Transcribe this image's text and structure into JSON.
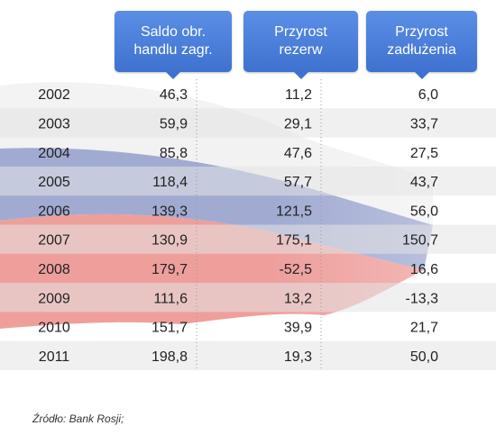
{
  "headers": [
    {
      "label": "Saldo obr.\nhandlu zagr."
    },
    {
      "label": "Przyrost\nrezerw"
    },
    {
      "label": "Przyrost\nzadłużenia"
    }
  ],
  "colors": {
    "header_top": "#5b8ee6",
    "header_bottom": "#3f72cf",
    "stripe": "#e4e4e4",
    "flag_white": "#f1f1f1",
    "flag_blue": "#5d6fb2",
    "flag_red": "#e0504a"
  },
  "chart_data": {
    "type": "table",
    "columns": [
      "Saldo obr. handlu zagr.",
      "Przyrost rezerw",
      "Przyrost zadłużenia"
    ],
    "rows": [
      {
        "year": "2002",
        "values": [
          "46,3",
          "11,2",
          "6,0"
        ]
      },
      {
        "year": "2003",
        "values": [
          "59,9",
          "29,1",
          "33,7"
        ]
      },
      {
        "year": "2004",
        "values": [
          "85,8",
          "47,6",
          "27,5"
        ]
      },
      {
        "year": "2005",
        "values": [
          "118,4",
          "57,7",
          "43,7"
        ]
      },
      {
        "year": "2006",
        "values": [
          "139,3",
          "121,5",
          "56,0"
        ]
      },
      {
        "year": "2007",
        "values": [
          "130,9",
          "175,1",
          "150,7"
        ]
      },
      {
        "year": "2008",
        "values": [
          "179,7",
          "-52,5",
          "16,6"
        ]
      },
      {
        "year": "2009",
        "values": [
          "111,6",
          "13,2",
          "-13,3"
        ]
      },
      {
        "year": "2010",
        "values": [
          "151,7",
          "39,9",
          "21,7"
        ]
      },
      {
        "year": "2011",
        "values": [
          "198,8",
          "19,3",
          "50,0"
        ]
      }
    ]
  },
  "source": "Źródło: Bank Rosji;"
}
